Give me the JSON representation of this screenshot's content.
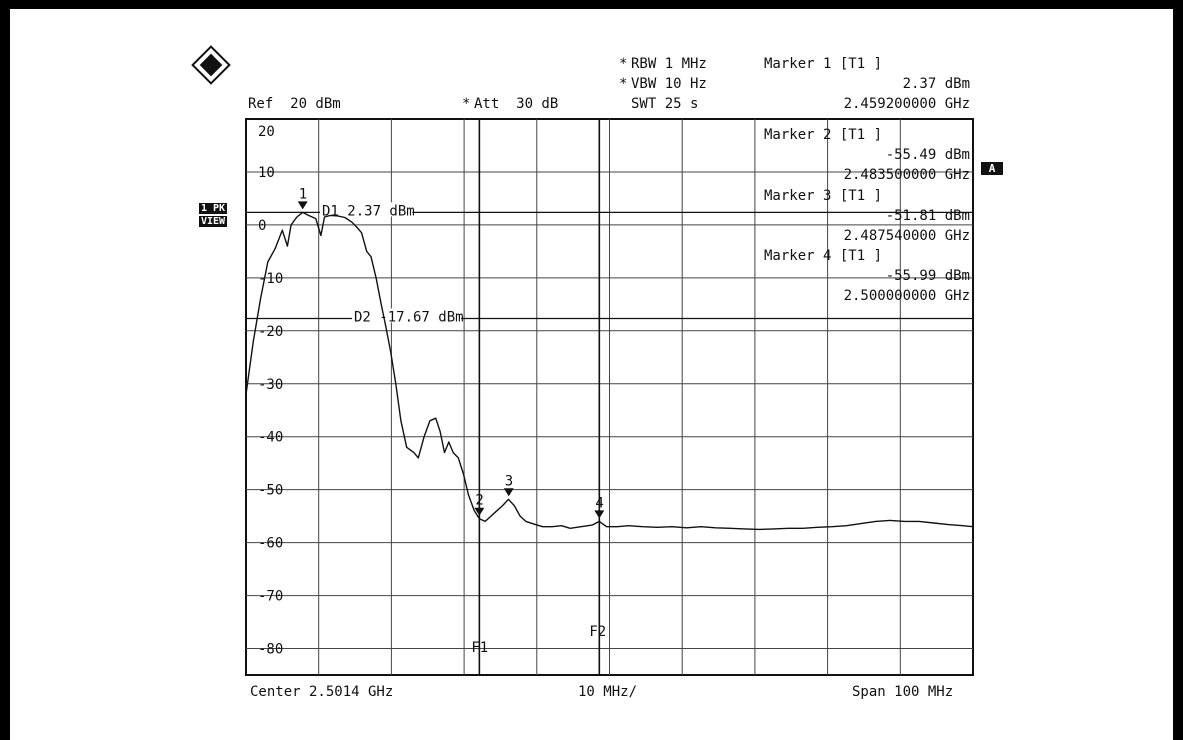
{
  "header": {
    "ref": "Ref  20 dBm",
    "att_star": "*",
    "att": "Att  30 dB",
    "rbw_star": "*",
    "rbw": "RBW 1 MHz",
    "vbw_star": "*",
    "vbw": "VBW 10 Hz",
    "swt": "SWT 25 s"
  },
  "side_tags": {
    "tag1": "1 PK",
    "tag2": "VIEW",
    "tagA": "A"
  },
  "markers": [
    {
      "title": "Marker 1 [T1 ]",
      "level": "2.37 dBm",
      "freq": "2.459200000 GHz"
    },
    {
      "title": "Marker 2 [T1 ]",
      "level": "-55.49 dBm",
      "freq": "2.483500000 GHz"
    },
    {
      "title": "Marker 3 [T1 ]",
      "level": "-51.81 dBm",
      "freq": "2.487540000 GHz"
    },
    {
      "title": "Marker 4 [T1 ]",
      "level": "-55.99 dBm",
      "freq": "2.500000000 GHz"
    }
  ],
  "footer": {
    "center": "Center 2.5014 GHz",
    "div": "10 MHz/",
    "span": "Span 100 MHz"
  },
  "chart_data": {
    "type": "line",
    "xlabel": "",
    "ylabel": "",
    "ylim": [
      -85,
      20
    ],
    "xlim": [
      2.4514,
      2.5514
    ],
    "y_tick_values": [
      20,
      10,
      0,
      -10,
      -20,
      -30,
      -40,
      -50,
      -60,
      -70,
      -80
    ],
    "y_tick_labels": [
      "20",
      "10",
      "0",
      "-10",
      "-20",
      "-30",
      "-40",
      "-50",
      "-60",
      "-70",
      "-80"
    ],
    "grid": true,
    "display_lines": [
      {
        "label": "D1",
        "text": "D1 2.37 dBm",
        "value": 2.37
      },
      {
        "label": "D2",
        "text": "D2 -17.67 dBm",
        "value": -17.67
      }
    ],
    "freq_lines": [
      {
        "label": "F1",
        "freq": 2.4835
      },
      {
        "label": "F2",
        "freq": 2.5
      }
    ],
    "marker_points": [
      {
        "label": "1",
        "freq": 2.4592,
        "level": 2.37
      },
      {
        "label": "2",
        "freq": 2.4835,
        "level": -55.49
      },
      {
        "label": "3",
        "freq": 2.48754,
        "level": -51.81
      },
      {
        "label": "4",
        "freq": 2.5,
        "level": -55.99
      }
    ],
    "series": [
      {
        "points": [
          [
            2.4514,
            -32
          ],
          [
            2.4524,
            -22
          ],
          [
            2.4534,
            -14
          ],
          [
            2.4544,
            -7
          ],
          [
            2.4554,
            -4.5
          ],
          [
            2.4564,
            -1
          ],
          [
            2.4571,
            -4
          ],
          [
            2.4576,
            0
          ],
          [
            2.4584,
            1.5
          ],
          [
            2.4592,
            2.37
          ],
          [
            2.46,
            1.8
          ],
          [
            2.461,
            1.2
          ],
          [
            2.4617,
            -2
          ],
          [
            2.4622,
            1.5
          ],
          [
            2.463,
            1.8
          ],
          [
            2.464,
            1.7
          ],
          [
            2.465,
            1.4
          ],
          [
            2.466,
            0.5
          ],
          [
            2.4667,
            -0.5
          ],
          [
            2.4673,
            -1.5
          ],
          [
            2.468,
            -5
          ],
          [
            2.4686,
            -6
          ],
          [
            2.4693,
            -10
          ],
          [
            2.47,
            -15
          ],
          [
            2.4706,
            -19
          ],
          [
            2.4713,
            -24
          ],
          [
            2.472,
            -30
          ],
          [
            2.4727,
            -37
          ],
          [
            2.4735,
            -42
          ],
          [
            2.4745,
            -43
          ],
          [
            2.4751,
            -44
          ],
          [
            2.4759,
            -40
          ],
          [
            2.4767,
            -37
          ],
          [
            2.4775,
            -36.5
          ],
          [
            2.4781,
            -39
          ],
          [
            2.4787,
            -43
          ],
          [
            2.4793,
            -41
          ],
          [
            2.4799,
            -43
          ],
          [
            2.4806,
            -44
          ],
          [
            2.4813,
            -47
          ],
          [
            2.482,
            -51
          ],
          [
            2.4828,
            -54
          ],
          [
            2.4835,
            -55.49
          ],
          [
            2.4843,
            -56
          ],
          [
            2.4851,
            -55
          ],
          [
            2.4859,
            -54
          ],
          [
            2.4867,
            -53
          ],
          [
            2.4875,
            -51.81
          ],
          [
            2.4883,
            -53
          ],
          [
            2.4891,
            -55
          ],
          [
            2.4899,
            -56
          ],
          [
            2.491,
            -56.5
          ],
          [
            2.4922,
            -57
          ],
          [
            2.4935,
            -57
          ],
          [
            2.4948,
            -56.8
          ],
          [
            2.496,
            -57.3
          ],
          [
            2.4975,
            -57
          ],
          [
            2.499,
            -56.7
          ],
          [
            2.5,
            -55.99
          ],
          [
            2.501,
            -57
          ],
          [
            2.5025,
            -57
          ],
          [
            2.504,
            -56.8
          ],
          [
            2.506,
            -57
          ],
          [
            2.508,
            -57.1
          ],
          [
            2.51,
            -57
          ],
          [
            2.512,
            -57.2
          ],
          [
            2.514,
            -57
          ],
          [
            2.516,
            -57.2
          ],
          [
            2.518,
            -57.3
          ],
          [
            2.52,
            -57.4
          ],
          [
            2.522,
            -57.5
          ],
          [
            2.524,
            -57.4
          ],
          [
            2.526,
            -57.3
          ],
          [
            2.528,
            -57.3
          ],
          [
            2.53,
            -57.1
          ],
          [
            2.532,
            -57
          ],
          [
            2.534,
            -56.8
          ],
          [
            2.536,
            -56.4
          ],
          [
            2.538,
            -56
          ],
          [
            2.54,
            -55.8
          ],
          [
            2.542,
            -56
          ],
          [
            2.544,
            -56
          ],
          [
            2.546,
            -56.3
          ],
          [
            2.548,
            -56.6
          ],
          [
            2.55,
            -56.8
          ],
          [
            2.5514,
            -57
          ]
        ]
      }
    ]
  }
}
